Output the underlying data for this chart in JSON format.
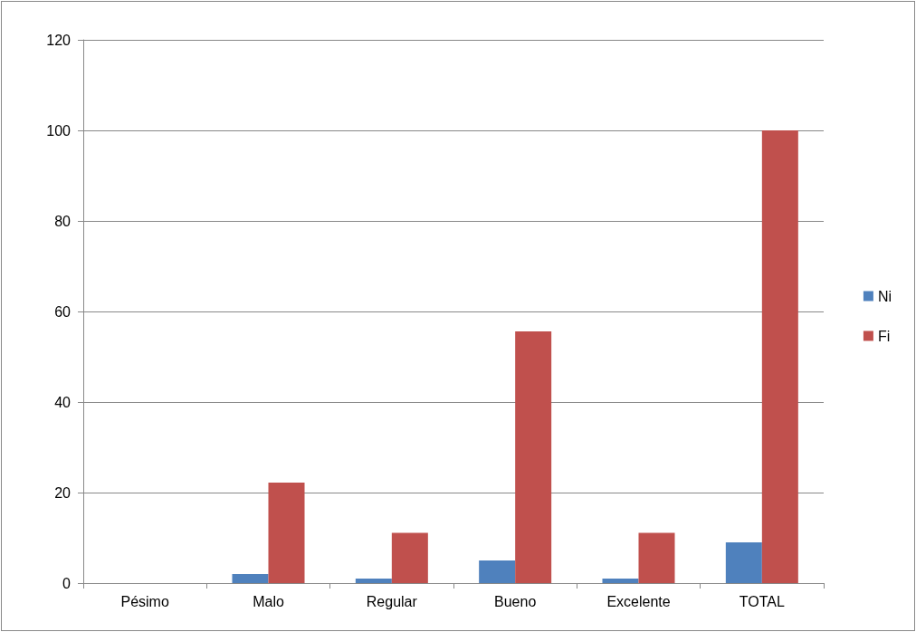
{
  "chart_data": {
    "type": "bar",
    "categories": [
      "Pésimo",
      "Malo",
      "Regular",
      "Bueno",
      "Excelente",
      "TOTAL"
    ],
    "series": [
      {
        "name": "Ni",
        "color": "#4f81bd",
        "values": [
          0,
          2,
          1,
          5,
          1,
          9
        ]
      },
      {
        "name": "Fi",
        "color": "#c0504d",
        "values": [
          0,
          22.2,
          11.1,
          55.6,
          11.1,
          100
        ]
      }
    ],
    "ylim": [
      0,
      120
    ],
    "yticks": [
      0,
      20,
      40,
      60,
      80,
      100,
      120
    ],
    "grid": "y",
    "legend": "right"
  }
}
